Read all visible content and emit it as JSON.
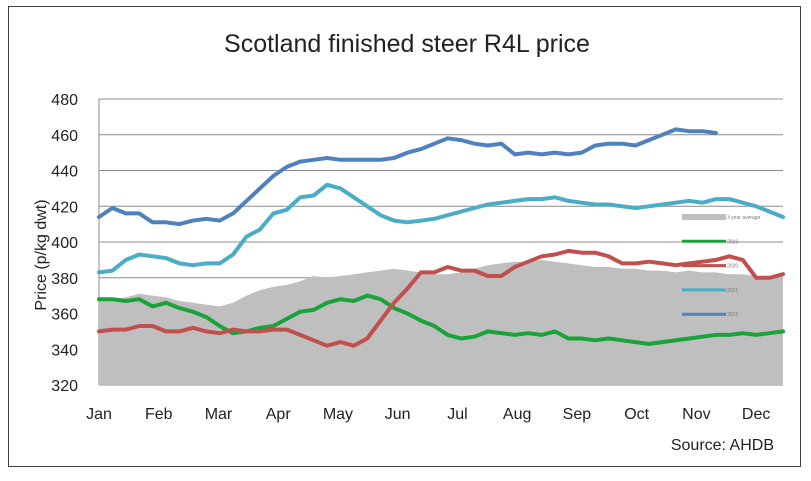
{
  "chart_data": {
    "type": "line",
    "title": "Scotland finished steer R4L price",
    "ylabel": "Price (p/kg dwt)",
    "xlabel": "",
    "source": "Source: AHDB",
    "ylim": [
      320,
      480
    ],
    "yticks": [
      320,
      340,
      360,
      380,
      400,
      420,
      440,
      460,
      480
    ],
    "months": [
      "Jan",
      "Feb",
      "Mar",
      "Apr",
      "May",
      "Jun",
      "Jul",
      "Aug",
      "Sep",
      "Oct",
      "Nov",
      "Dec"
    ],
    "x_range": [
      1,
      52
    ],
    "grid": "horizontal",
    "legend_placement": "right",
    "series": [
      {
        "name": "3 year average",
        "style": "area",
        "color": "#bfbfbf",
        "values": [
          368,
          368,
          369,
          371,
          370,
          369,
          367,
          366,
          365,
          364,
          366,
          370,
          373,
          375,
          376,
          378,
          381,
          380,
          381,
          382,
          383,
          384,
          385,
          384,
          383,
          382,
          382,
          383,
          385,
          387,
          388,
          389,
          389,
          390,
          389,
          388,
          387,
          386,
          386,
          385,
          385,
          384,
          384,
          383,
          384,
          383,
          383,
          382,
          382,
          381,
          381,
          382
        ]
      },
      {
        "name": "2019",
        "color": "#1aa33a",
        "values": [
          368,
          368,
          367,
          368,
          364,
          366,
          363,
          361,
          358,
          353,
          349,
          350,
          352,
          353,
          357,
          361,
          362,
          366,
          368,
          367,
          370,
          368,
          363,
          360,
          356,
          353,
          348,
          346,
          347,
          350,
          349,
          348,
          349,
          348,
          350,
          346,
          346,
          345,
          346,
          345,
          344,
          343,
          344,
          345,
          346,
          347,
          348,
          348,
          349,
          348,
          349,
          350
        ]
      },
      {
        "name": "2020",
        "color": "#c0504d",
        "values": [
          350,
          351,
          351,
          353,
          353,
          350,
          350,
          352,
          350,
          349,
          351,
          350,
          350,
          351,
          351,
          348,
          345,
          342,
          344,
          342,
          346,
          356,
          366,
          374,
          383,
          383,
          386,
          384,
          384,
          381,
          381,
          386,
          389,
          392,
          393,
          395,
          394,
          394,
          392,
          388,
          388,
          389,
          388,
          387,
          388,
          389,
          390,
          392,
          390,
          380,
          380,
          382
        ]
      },
      {
        "name": "2021",
        "color": "#4bacc6",
        "values": [
          383,
          384,
          390,
          393,
          392,
          391,
          388,
          387,
          388,
          388,
          393,
          403,
          407,
          416,
          418,
          425,
          426,
          432,
          430,
          425,
          420,
          415,
          412,
          411,
          412,
          413,
          415,
          417,
          419,
          421,
          422,
          423,
          424,
          424,
          425,
          423,
          422,
          421,
          421,
          420,
          419,
          420,
          421,
          422,
          423,
          422,
          424,
          424,
          422,
          420,
          417,
          414
        ]
      },
      {
        "name": "2022",
        "color": "#4f81bd",
        "values": [
          414,
          419,
          416,
          416,
          411,
          411,
          410,
          412,
          413,
          412,
          416,
          423,
          430,
          437,
          442,
          445,
          446,
          447,
          446,
          446,
          446,
          446,
          447,
          450,
          452,
          455,
          458,
          457,
          455,
          454,
          455,
          449,
          450,
          449,
          450,
          449,
          450,
          454,
          455,
          455,
          454,
          457,
          460,
          463,
          462,
          462,
          461
        ]
      }
    ]
  }
}
